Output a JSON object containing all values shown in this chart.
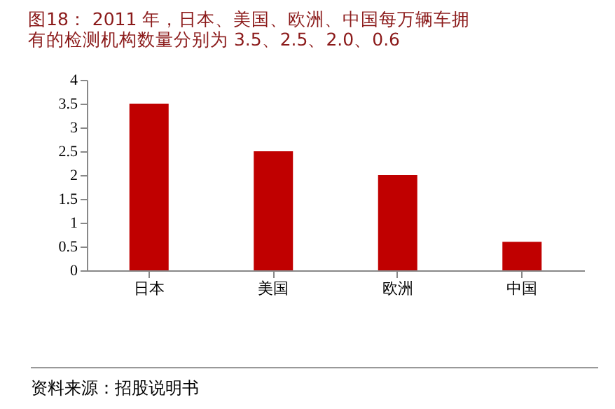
{
  "chart_data": {
    "type": "bar",
    "title": "图18：  2011 年，日本、美国、欧洲、中国每万辆车拥有的检测机构数量分别为 3.5、2.5、2.0、0.6",
    "categories": [
      "日本",
      "美国",
      "欧洲",
      "中国"
    ],
    "values": [
      3.5,
      2.5,
      2.0,
      0.6
    ],
    "color": "#c00000",
    "ylim": [
      0,
      4
    ],
    "yticks": [
      0,
      0.5,
      1,
      1.5,
      2,
      2.5,
      3,
      3.5,
      4
    ],
    "grid": false,
    "annotations": [
      "资料来源：招股说明书"
    ]
  }
}
